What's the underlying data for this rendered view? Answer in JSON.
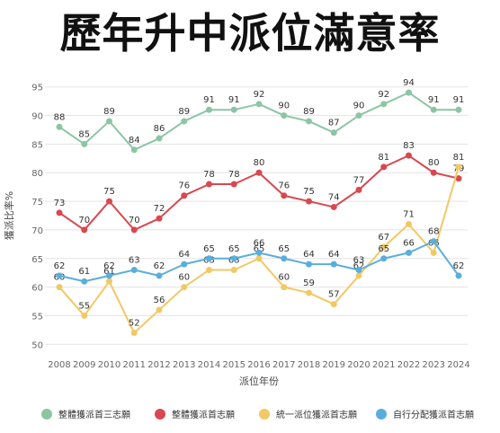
{
  "chart_data": {
    "type": "line",
    "title": "歷年升中派位滿意率",
    "xlabel": "派位年份",
    "ylabel": "獲派比率%",
    "ylim": [
      48,
      97
    ],
    "yticks": [
      50,
      55,
      60,
      65,
      70,
      75,
      80,
      85,
      90,
      95
    ],
    "grid": true,
    "legend_position": "bottom",
    "x": [
      2008,
      2009,
      2010,
      2011,
      2012,
      2013,
      2014,
      2015,
      2016,
      2017,
      2018,
      2019,
      2020,
      2021,
      2022,
      2023,
      2024
    ],
    "series": [
      {
        "name": "整體獲派首三志願",
        "color": "#8cc5a4",
        "values": [
          88,
          85,
          89,
          84,
          86,
          89,
          91,
          91,
          92,
          90,
          89,
          87,
          90,
          92,
          94,
          91,
          91
        ]
      },
      {
        "name": "整體獲派首志願",
        "color": "#d9474f",
        "values": [
          73,
          70,
          75,
          70,
          72,
          76,
          78,
          78,
          80,
          76,
          75,
          74,
          77,
          81,
          83,
          80,
          79
        ]
      },
      {
        "name": "統一派位獲派首志願",
        "color": "#f2c865",
        "values": [
          60,
          55,
          61,
          52,
          56,
          60,
          63,
          63,
          65,
          60,
          59,
          57,
          62,
          67,
          71,
          66,
          81
        ]
      },
      {
        "name": "自行分配獲派首志願",
        "color": "#5aaedc",
        "values": [
          62,
          61,
          62,
          63,
          62,
          64,
          65,
          65,
          66,
          65,
          64,
          64,
          63,
          65,
          66,
          68,
          62
        ]
      }
    ]
  }
}
